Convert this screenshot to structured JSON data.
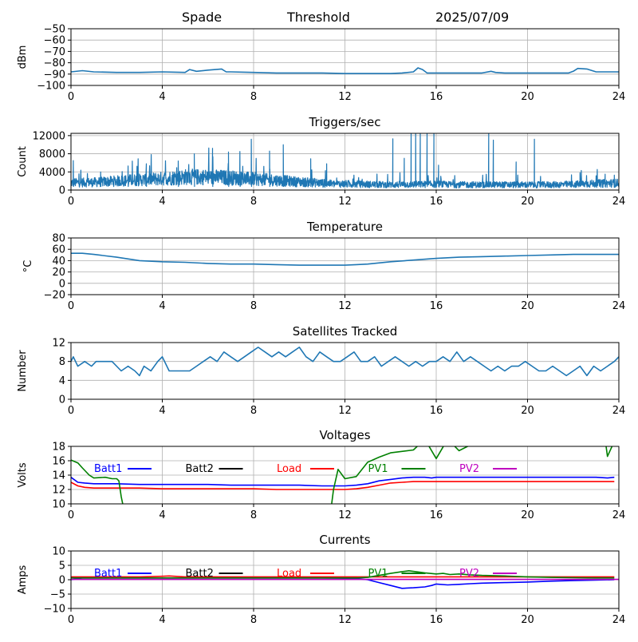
{
  "header": {
    "station": "Spade",
    "label": "Threshold",
    "date": "2025/07/09"
  },
  "chart_data": [
    {
      "type": "line",
      "title": "",
      "ylabel": "dBm",
      "xlim": [
        0,
        24
      ],
      "ylim": [
        -100,
        -50
      ],
      "yticks": [
        -100,
        -90,
        -80,
        -70,
        -60,
        -50
      ],
      "xticks": [
        0,
        4,
        8,
        12,
        16,
        20,
        24
      ],
      "grid": true,
      "series": [
        {
          "color": "#1f77b4",
          "x": [
            0,
            0.5,
            1,
            2,
            3,
            4,
            5,
            5.2,
            5.5,
            6,
            6.6,
            6.8,
            7,
            8,
            9,
            10,
            11,
            12,
            13,
            14,
            14.5,
            15,
            15.2,
            15.4,
            15.6,
            15.8,
            16,
            17,
            18,
            18.4,
            18.6,
            19,
            20,
            21,
            21.5,
            21.8,
            22,
            22.2,
            22.6,
            23,
            24
          ],
          "y": [
            -88,
            -87,
            -88,
            -88.5,
            -88.5,
            -88,
            -88.5,
            -86,
            -87.5,
            -86.5,
            -85.5,
            -88,
            -88,
            -88.5,
            -89,
            -89,
            -89,
            -89.5,
            -89.5,
            -89.5,
            -89,
            -88,
            -84.5,
            -86,
            -89,
            -89,
            -89,
            -89,
            -89,
            -87.5,
            -88.5,
            -89,
            -89,
            -89,
            -89,
            -89,
            -87.5,
            -85,
            -85.5,
            -88,
            -88
          ]
        }
      ]
    },
    {
      "type": "line",
      "title": "Triggers/sec",
      "ylabel": "Count",
      "xlim": [
        0,
        24
      ],
      "ylim": [
        0,
        12500
      ],
      "yticks": [
        0,
        4000,
        8000,
        12000
      ],
      "xticks": [
        0,
        4,
        8,
        12,
        16,
        20,
        24
      ],
      "grid": true,
      "noisy": true,
      "series": [
        {
          "color": "#1f77b4",
          "baseline_x": [
            0,
            1,
            2,
            3,
            4,
            5,
            6,
            7,
            8,
            9,
            10,
            11,
            11.5,
            12,
            13,
            14,
            15,
            16,
            17,
            18,
            19,
            20,
            21,
            22,
            23,
            24
          ],
          "baseline_y": [
            1800,
            1900,
            2200,
            2500,
            2800,
            3200,
            3200,
            3000,
            2700,
            2400,
            2000,
            1700,
            1500,
            1500,
            1400,
            1300,
            1400,
            1400,
            1300,
            1300,
            1300,
            1300,
            1300,
            1400,
            1600,
            1700
          ],
          "spikes_x": [
            0.1,
            1.3,
            2.5,
            3.3,
            4.7,
            5.4,
            6.2,
            6.9,
            7.4,
            7.9,
            8.7,
            9.3,
            10.5,
            11.2,
            14.1,
            14.6,
            14.9,
            15.1,
            15.3,
            15.6,
            15.9,
            16.1,
            18.3,
            18.5,
            19.5,
            20.3,
            22.3,
            23.4,
            23.8
          ],
          "spikes_y": [
            6500,
            4000,
            5300,
            5800,
            6400,
            8000,
            9200,
            8400,
            8500,
            11200,
            8600,
            10000,
            6900,
            5800,
            11300,
            7000,
            12500,
            12500,
            12500,
            12500,
            12500,
            5500,
            12500,
            11000,
            6200,
            11200,
            3800,
            3500,
            3300
          ]
        }
      ]
    },
    {
      "type": "line",
      "title": "Temperature",
      "ylabel": "°C",
      "xlim": [
        0,
        24
      ],
      "ylim": [
        -20,
        80
      ],
      "yticks": [
        -20,
        0,
        20,
        40,
        60,
        80
      ],
      "xticks": [
        0,
        4,
        8,
        12,
        16,
        20,
        24
      ],
      "grid": true,
      "series": [
        {
          "color": "#1f77b4",
          "x": [
            0,
            0.5,
            1,
            2,
            3,
            4,
            5,
            6,
            7,
            8,
            9,
            10,
            11,
            12,
            12.5,
            13,
            14,
            15,
            16,
            17,
            18,
            19,
            20,
            21,
            22,
            23,
            24
          ],
          "y": [
            53,
            53,
            51,
            46,
            40,
            38,
            37,
            35,
            34,
            34,
            33,
            32,
            32,
            32,
            33,
            34,
            38,
            41,
            44,
            46,
            47,
            48,
            49,
            50,
            51,
            51,
            51
          ]
        }
      ]
    },
    {
      "type": "line",
      "title": "Satellites Tracked",
      "ylabel": "Number",
      "xlim": [
        0,
        24
      ],
      "ylim": [
        0,
        12
      ],
      "yticks": [
        0,
        4,
        8,
        12
      ],
      "xticks": [
        0,
        4,
        8,
        12,
        16,
        20,
        24
      ],
      "grid": true,
      "series": [
        {
          "color": "#1f77b4",
          "x": [
            0,
            0.1,
            0.3,
            0.6,
            0.9,
            1.1,
            1.8,
            2.2,
            2.5,
            2.8,
            3,
            3.2,
            3.5,
            3.8,
            4,
            4.3,
            4.6,
            4.9,
            5.2,
            5.5,
            5.8,
            6.1,
            6.4,
            6.7,
            7,
            7.3,
            7.6,
            7.9,
            8.2,
            8.5,
            8.8,
            9.1,
            9.4,
            9.7,
            10,
            10.3,
            10.6,
            10.9,
            11.2,
            11.5,
            11.8,
            12.1,
            12.4,
            12.7,
            13,
            13.3,
            13.6,
            13.9,
            14.2,
            14.5,
            14.8,
            15.1,
            15.4,
            15.7,
            16,
            16.3,
            16.6,
            16.9,
            17.2,
            17.5,
            17.8,
            18.1,
            18.4,
            18.7,
            19,
            19.3,
            19.6,
            19.9,
            20.2,
            20.5,
            20.8,
            21.1,
            21.4,
            21.7,
            22,
            22.3,
            22.6,
            22.9,
            23.2,
            23.5,
            23.8,
            24
          ],
          "y": [
            8,
            9,
            7,
            8,
            7,
            8,
            8,
            6,
            7,
            6,
            5,
            7,
            6,
            8,
            9,
            6,
            6,
            6,
            6,
            7,
            8,
            9,
            8,
            10,
            9,
            8,
            9,
            10,
            11,
            10,
            9,
            10,
            9,
            10,
            11,
            9,
            8,
            10,
            9,
            8,
            8,
            9,
            10,
            8,
            8,
            9,
            7,
            8,
            9,
            8,
            7,
            8,
            7,
            8,
            8,
            9,
            8,
            10,
            8,
            9,
            8,
            7,
            6,
            7,
            6,
            7,
            7,
            8,
            7,
            6,
            6,
            7,
            6,
            5,
            6,
            7,
            5,
            7,
            6,
            7,
            8,
            9
          ]
        }
      ]
    },
    {
      "type": "line",
      "title": "Voltages",
      "ylabel": "Volts",
      "xlim": [
        0,
        24
      ],
      "ylim": [
        10,
        18
      ],
      "yticks": [
        10,
        12,
        14,
        16,
        18
      ],
      "xticks": [
        0,
        4,
        8,
        12,
        16,
        20,
        24
      ],
      "grid": true,
      "legend": "top",
      "series": [
        {
          "name": "Batt1",
          "color": "#0000ff",
          "x": [
            0,
            0.3,
            0.6,
            1,
            2,
            3,
            4,
            5,
            6,
            7,
            8,
            9,
            10,
            11,
            12,
            12.5,
            13,
            13.5,
            14,
            14.5,
            15,
            15.5,
            15.8,
            16,
            17,
            18,
            19,
            20,
            21,
            22,
            23,
            23.5,
            23.8
          ],
          "y": [
            13.7,
            13.0,
            12.9,
            12.8,
            12.8,
            12.7,
            12.7,
            12.7,
            12.7,
            12.6,
            12.6,
            12.6,
            12.6,
            12.5,
            12.5,
            12.6,
            12.8,
            13.2,
            13.4,
            13.6,
            13.7,
            13.7,
            13.6,
            13.7,
            13.7,
            13.7,
            13.7,
            13.7,
            13.7,
            13.7,
            13.7,
            13.6,
            13.7
          ]
        },
        {
          "name": "Batt2",
          "color": "#000000",
          "x": [],
          "y": []
        },
        {
          "name": "Load",
          "color": "#ff0000",
          "x": [
            0,
            0.3,
            0.6,
            1,
            2,
            3,
            4,
            5,
            6,
            7,
            8,
            9,
            10,
            11,
            12,
            12.5,
            13,
            13.5,
            14,
            14.5,
            15,
            15.5,
            16,
            17,
            18,
            19,
            20,
            21,
            22,
            23,
            23.5,
            23.8
          ],
          "y": [
            13.0,
            12.5,
            12.3,
            12.2,
            12.2,
            12.2,
            12.1,
            12.1,
            12.1,
            12.1,
            12.1,
            12.0,
            12.0,
            12.0,
            12.0,
            12.1,
            12.3,
            12.6,
            12.9,
            13.0,
            13.1,
            13.1,
            13.1,
            13.1,
            13.1,
            13.1,
            13.1,
            13.1,
            13.1,
            13.1,
            13.1,
            13.1
          ]
        },
        {
          "name": "PV1",
          "color": "#008000",
          "x": [
            0,
            0.3,
            0.5,
            0.8,
            1,
            1.5,
            1.8,
            2,
            2.1,
            2.2,
            2.3,
            11.4,
            11.5,
            11.7,
            12,
            12.5,
            13,
            13.5,
            14,
            15,
            15.5,
            16,
            16.5,
            17,
            18,
            19,
            20,
            21,
            22,
            23,
            23.4,
            23.5,
            23.7,
            23.8
          ],
          "y": [
            16.1,
            15.7,
            15,
            14.0,
            13.6,
            13.7,
            13.5,
            13.5,
            13.2,
            11,
            9.5,
            9.5,
            12,
            14.8,
            13.5,
            13.8,
            15.8,
            16.5,
            17.1,
            17.5,
            19,
            16.3,
            19,
            17.4,
            19,
            19,
            19,
            19,
            19,
            19,
            19,
            16.6,
            18,
            19
          ]
        },
        {
          "name": "PV2",
          "color": "#bf00bf",
          "x": [],
          "y": []
        }
      ]
    },
    {
      "type": "line",
      "title": "Currents",
      "ylabel": "Amps",
      "xlim": [
        0,
        24
      ],
      "ylim": [
        -10,
        10
      ],
      "yticks": [
        -10,
        -5,
        0,
        5,
        10
      ],
      "xticks": [
        0,
        4,
        8,
        12,
        16,
        20,
        24
      ],
      "grid": true,
      "legend": "top",
      "series": [
        {
          "name": "Batt1",
          "color": "#0000ff",
          "x": [
            0,
            0.5,
            1,
            2,
            3,
            4,
            5,
            6,
            7,
            8,
            9,
            10,
            11,
            12,
            12.5,
            13,
            13.5,
            14,
            14.5,
            15,
            15.5,
            15.8,
            16,
            16.5,
            17,
            17.5,
            18,
            19,
            20,
            21,
            22,
            23,
            23.8
          ],
          "y": [
            0,
            0.6,
            0.6,
            0.6,
            0.6,
            0.6,
            0.6,
            0.6,
            0.6,
            0.6,
            0.6,
            0.6,
            0.6,
            0.5,
            0.4,
            0,
            -1,
            -2,
            -3,
            -2.8,
            -2.5,
            -2,
            -1.5,
            -1.8,
            -1.6,
            -1.4,
            -1.2,
            -1,
            -0.8,
            -0.5,
            -0.3,
            -0.1,
            0
          ]
        },
        {
          "name": "Batt2",
          "color": "#000000",
          "x": [],
          "y": []
        },
        {
          "name": "Load",
          "color": "#ff0000",
          "x": [
            0,
            1,
            2,
            3,
            4,
            4.3,
            5,
            6,
            7,
            8,
            9,
            10,
            11,
            12,
            13,
            14,
            15,
            16,
            17,
            18,
            19,
            20,
            21,
            22,
            23,
            23.8
          ],
          "y": [
            1.0,
            1.0,
            1.0,
            1.0,
            1.2,
            1.3,
            1.0,
            1.0,
            1.0,
            1.0,
            1.0,
            1.0,
            1.0,
            1.0,
            1.0,
            1.0,
            1.0,
            1.0,
            1.0,
            1.0,
            1.0,
            1.0,
            1.0,
            1.0,
            1.0,
            1.0
          ]
        },
        {
          "name": "PV1",
          "color": "#008000",
          "x": [
            0,
            1,
            2,
            3,
            4,
            5,
            6,
            7,
            8,
            9,
            10,
            11,
            12,
            12.5,
            13,
            13.5,
            14,
            14.5,
            14.8,
            15,
            15.5,
            16,
            16.3,
            16.6,
            17,
            17.5,
            18,
            19,
            20,
            21,
            22,
            23,
            23.8
          ],
          "y": [
            0.6,
            0.6,
            0.6,
            0.6,
            0.6,
            0.6,
            0.6,
            0.6,
            0.6,
            0.6,
            0.6,
            0.6,
            0.6,
            0.6,
            0.8,
            1.5,
            2.2,
            2.8,
            3.1,
            2.9,
            2.4,
            2.0,
            2.2,
            1.8,
            2.0,
            1.7,
            1.5,
            1.3,
            1.0,
            0.8,
            0.7,
            0.6,
            0.6
          ]
        },
        {
          "name": "PV2",
          "color": "#bf00bf",
          "x": [
            0,
            24
          ],
          "y": [
            0.1,
            0.1
          ]
        }
      ]
    }
  ]
}
